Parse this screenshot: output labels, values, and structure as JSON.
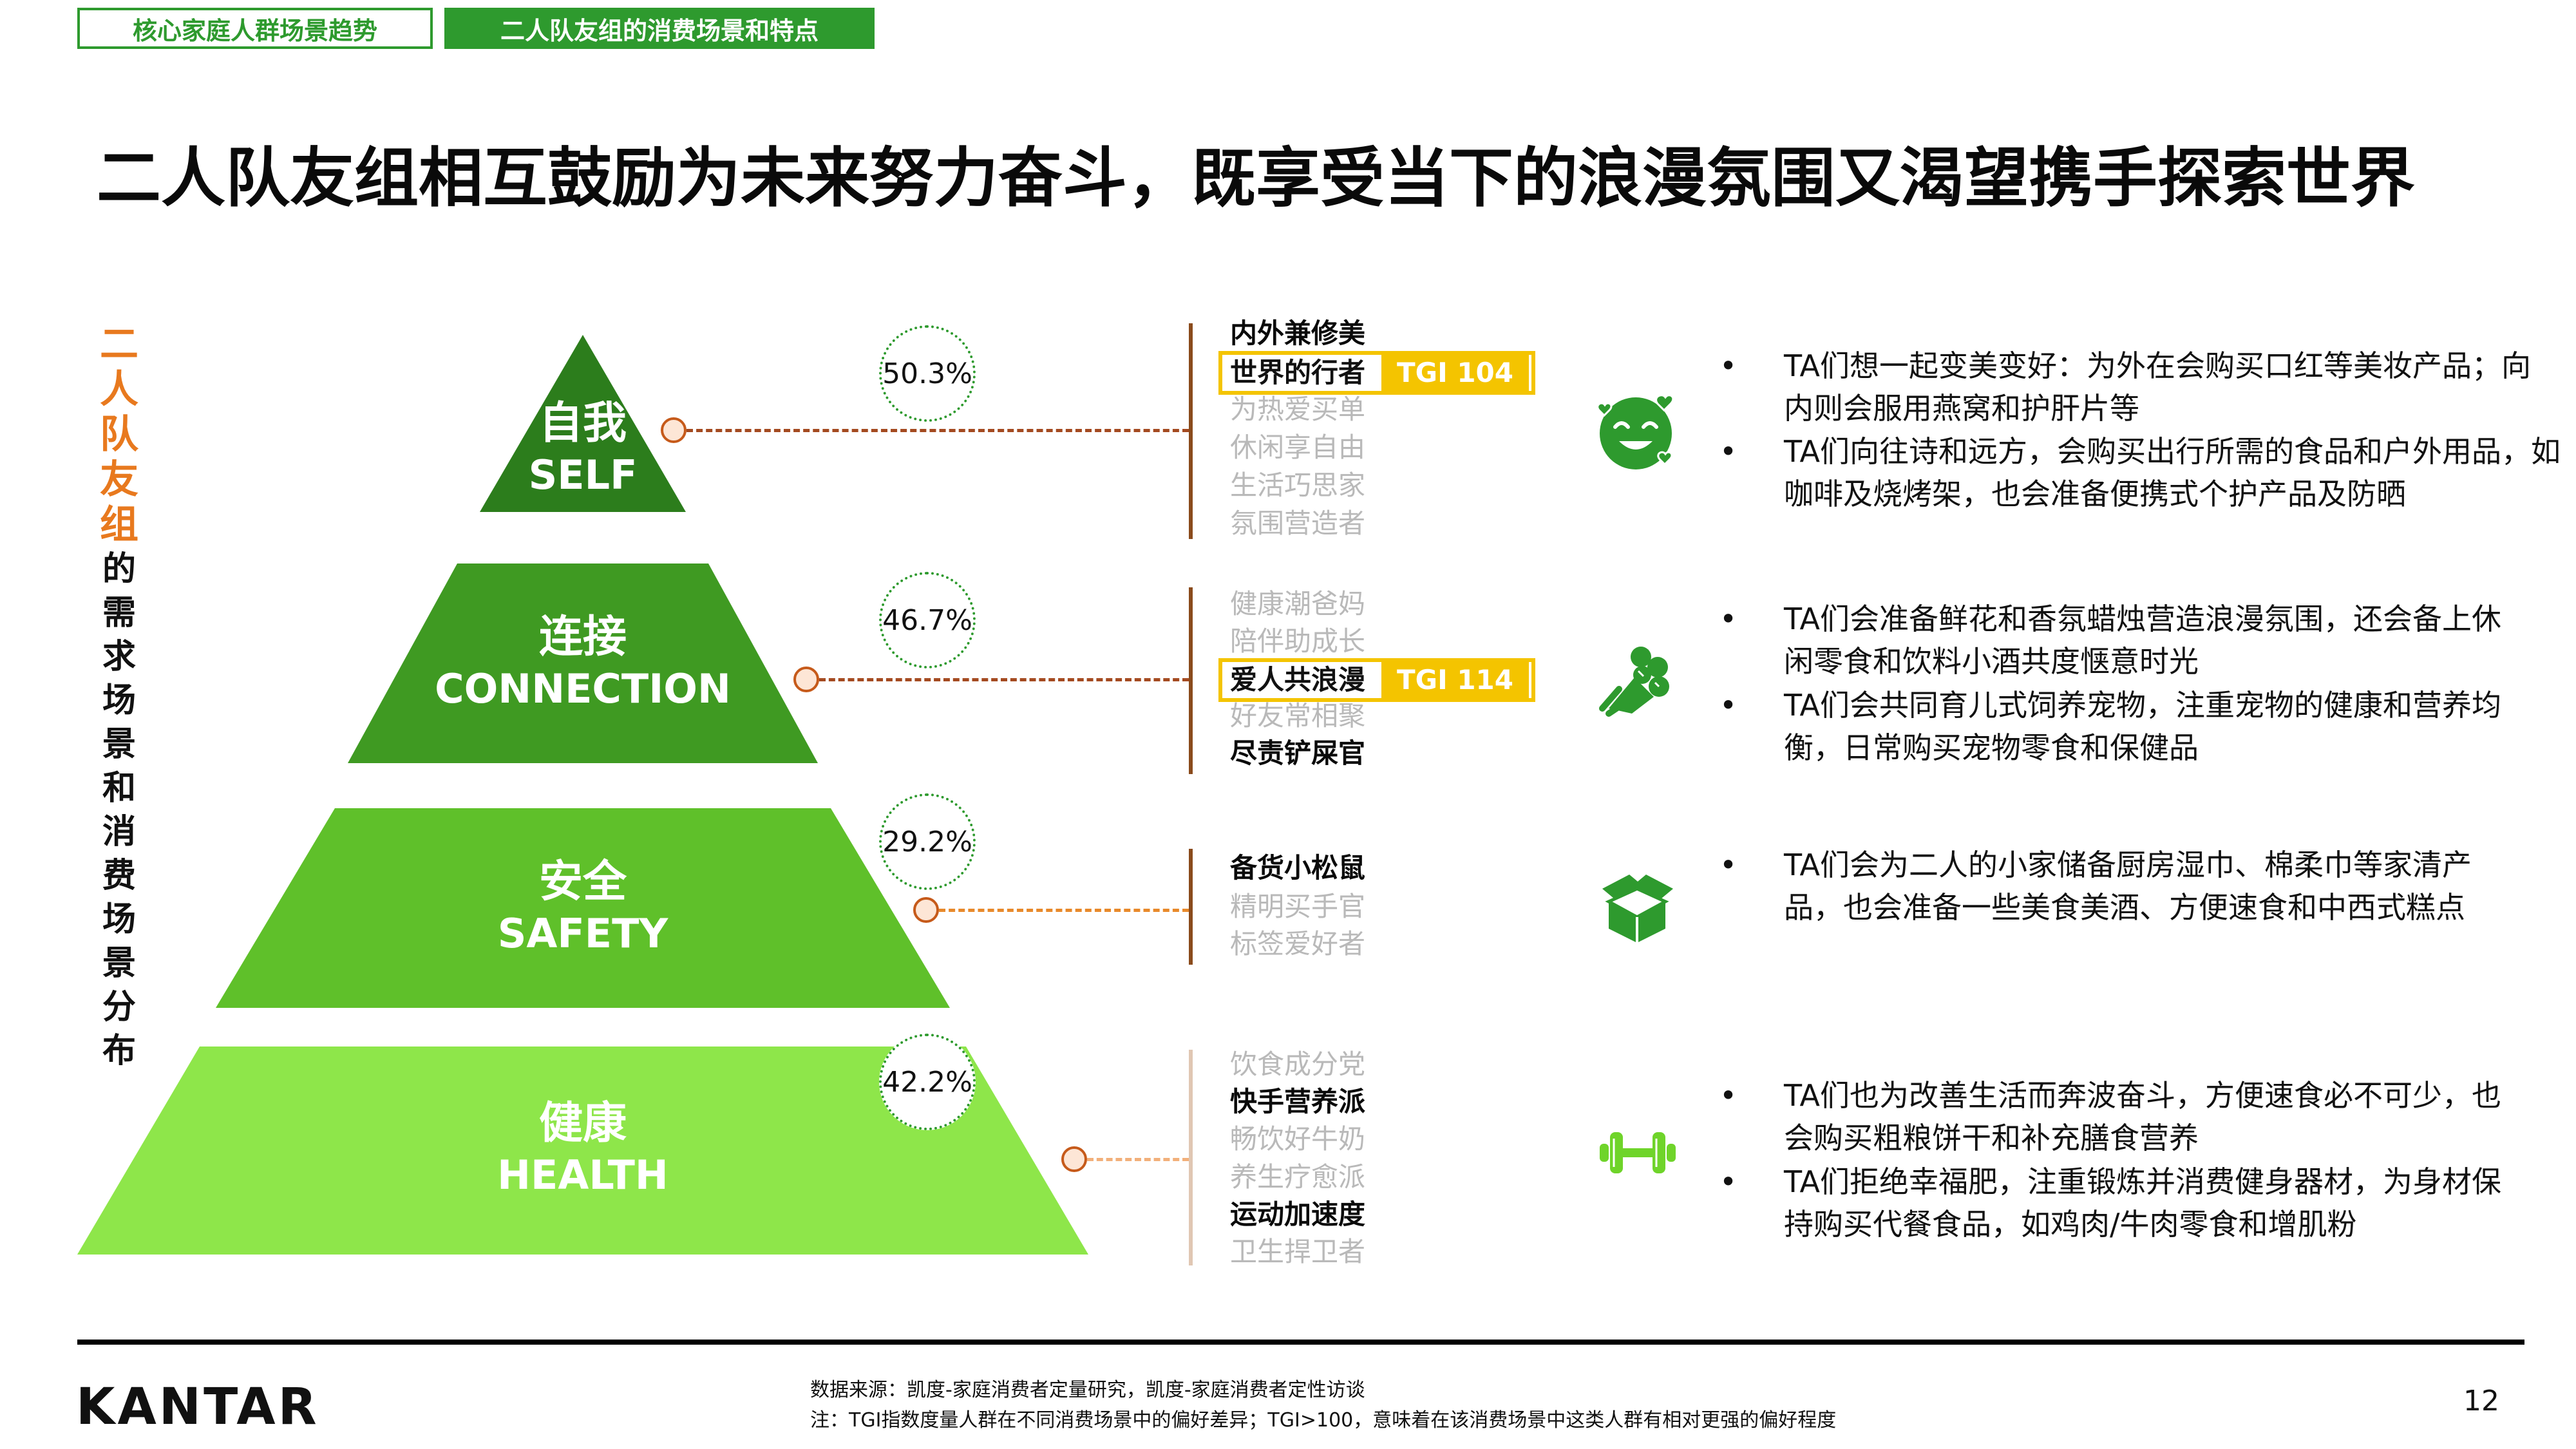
{
  "breadcrumb": {
    "tab1": "核心家庭人群场景趋势",
    "tab2": "二人队友组的消费场景和特点"
  },
  "title": "二人队友组相互鼓励为未来努力奋斗，既享受当下的浪漫氛围又渴望携手探索世界",
  "vertical_label": {
    "highlight": [
      "二",
      "人",
      "队",
      "友",
      "组"
    ],
    "rest": [
      "的",
      "需",
      "求",
      "场",
      "景",
      "和",
      "消",
      "费",
      "场",
      "景",
      "分",
      "布"
    ]
  },
  "colors": {
    "brand_green": "#2e9a2e",
    "accent_orange": "#e8791e",
    "tgi_yellow": "#f4c400",
    "self": "#2c7d1c",
    "connection": "#3f9a22",
    "safety": "#5fc02a",
    "health": "#8ee64a"
  },
  "tiers": [
    {
      "cn": "自我",
      "en": "SELF",
      "percent": "50.3%",
      "scenes": [
        {
          "text": "内外兼修美",
          "style": "bold"
        },
        {
          "text": "世界的行者",
          "style": "highlight",
          "tgi": "TGI 104"
        },
        {
          "text": "为热爱买单",
          "style": "grey"
        },
        {
          "text": "休闲享自由",
          "style": "grey"
        },
        {
          "text": "生活巧思家",
          "style": "grey"
        },
        {
          "text": "氛围营造者",
          "style": "grey"
        }
      ],
      "icon": "smiling-face-hearts-icon",
      "bullets": [
        "TA们想一起变美变好：为外在会购买口红等美妆产品；向内则会服用燕窝和护肝片等",
        "TA们向往诗和远方，会购买出行所需的食品和户外用品，如咖啡及烧烤架，也会准备便携式个护产品及防晒"
      ]
    },
    {
      "cn": "连接",
      "en": "CONNECTION",
      "percent": "46.7%",
      "scenes": [
        {
          "text": "健康潮爸妈",
          "style": "grey"
        },
        {
          "text": "陪伴助成长",
          "style": "grey"
        },
        {
          "text": "爱人共浪漫",
          "style": "highlight",
          "tgi": "TGI 114"
        },
        {
          "text": "好友常相聚",
          "style": "grey"
        },
        {
          "text": "尽责铲屎官",
          "style": "bold"
        }
      ],
      "icon": "flower-bouquet-icon",
      "bullets": [
        "TA们会准备鲜花和香氛蜡烛营造浪漫氛围，还会备上休闲零食和饮料小酒共度惬意时光",
        "TA们会共同育儿式饲养宠物，注重宠物的健康和营养均衡，日常购买宠物零食和保健品"
      ]
    },
    {
      "cn": "安全",
      "en": "SAFETY",
      "percent": "29.2%",
      "scenes": [
        {
          "text": "备货小松鼠",
          "style": "bold"
        },
        {
          "text": "精明买手官",
          "style": "grey"
        },
        {
          "text": "标签爱好者",
          "style": "grey"
        }
      ],
      "icon": "open-box-icon",
      "bullets": [
        "TA们会为二人的小家储备厨房湿巾、棉柔巾等家清产品，也会准备一些美食美酒、方便速食和中西式糕点"
      ]
    },
    {
      "cn": "健康",
      "en": "HEALTH",
      "percent": "42.2%",
      "scenes": [
        {
          "text": "饮食成分党",
          "style": "grey"
        },
        {
          "text": "快手营养派",
          "style": "bold"
        },
        {
          "text": "畅饮好牛奶",
          "style": "grey"
        },
        {
          "text": "养生疗愈派",
          "style": "grey"
        },
        {
          "text": "运动加速度",
          "style": "bold"
        },
        {
          "text": "卫生捍卫者",
          "style": "grey"
        }
      ],
      "icon": "dumbbell-icon",
      "bullets": [
        "TA们也为改善生活而奔波奋斗，方便速食必不可少，也会购买粗粮饼干和补充膳食营养",
        "TA们拒绝幸福肥，注重锻炼并消费健身器材，为身材保持购买代餐食品，如鸡肉/牛肉零食和增肌粉"
      ]
    }
  ],
  "footer": {
    "logo": "KANTAR",
    "source": "数据来源：凯度-家庭消费者定量研究，凯度-家庭消费者定性访谈",
    "note": "注：TGI指数度量人群在不同消费场景中的偏好差异；TGI>100，意味着在该消费场景中这类人群有相对更强的偏好程度",
    "page": "12"
  }
}
